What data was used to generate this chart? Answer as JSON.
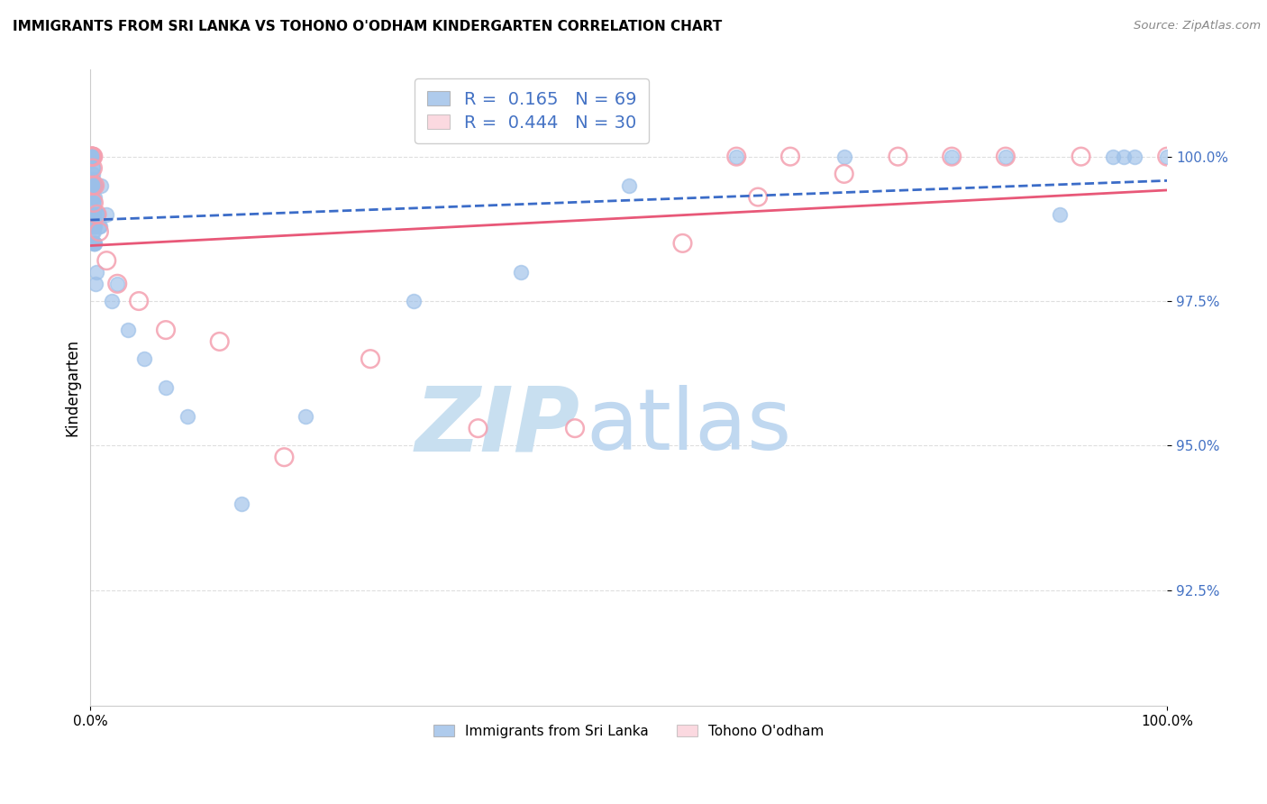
{
  "title": "IMMIGRANTS FROM SRI LANKA VS TOHONO O'ODHAM KINDERGARTEN CORRELATION CHART",
  "source": "Source: ZipAtlas.com",
  "ylabel": "Kindergarten",
  "xlim": [
    0.0,
    100.0
  ],
  "ylim": [
    90.5,
    101.5
  ],
  "y_tick_values": [
    92.5,
    95.0,
    97.5,
    100.0
  ],
  "legend_blue_label": "Immigrants from Sri Lanka",
  "legend_pink_label": "Tohono O'odham",
  "R_blue": "0.165",
  "N_blue": "69",
  "R_pink": "0.444",
  "N_pink": "30",
  "blue_face_color": "#9BBFE8",
  "blue_edge_color": "#9BBFE8",
  "pink_edge_color": "#F4A0B0",
  "pink_legend_color": "#F9C0CC",
  "blue_line_color": "#3B6CC8",
  "pink_line_color": "#E85878",
  "ytick_color": "#4472C4",
  "watermark_zip_color": "#C8DFF0",
  "watermark_atlas_color": "#C0D8F0",
  "blue_x": [
    0.08,
    0.09,
    0.1,
    0.1,
    0.1,
    0.11,
    0.12,
    0.13,
    0.14,
    0.15,
    0.15,
    0.16,
    0.17,
    0.17,
    0.18,
    0.18,
    0.19,
    0.2,
    0.2,
    0.2,
    0.21,
    0.22,
    0.22,
    0.23,
    0.24,
    0.25,
    0.25,
    0.26,
    0.27,
    0.28,
    0.29,
    0.3,
    0.3,
    0.32,
    0.33,
    0.35,
    0.36,
    0.38,
    0.4,
    0.42,
    0.45,
    0.5,
    0.55,
    0.6,
    0.7,
    0.8,
    0.9,
    1.0,
    1.5,
    2.0,
    2.5,
    3.5,
    5.0,
    7.0,
    9.0,
    14.0,
    20.0,
    30.0,
    40.0,
    50.0,
    60.0,
    70.0,
    80.0,
    85.0,
    90.0,
    95.0,
    96.0,
    97.0,
    100.0
  ],
  "blue_y": [
    100.0,
    100.0,
    100.0,
    100.0,
    100.0,
    100.0,
    100.0,
    100.0,
    100.0,
    100.0,
    100.0,
    100.0,
    100.0,
    100.0,
    99.7,
    99.5,
    99.8,
    100.0,
    99.6,
    99.3,
    99.8,
    99.5,
    99.2,
    99.0,
    98.8,
    99.5,
    99.0,
    98.7,
    98.5,
    99.0,
    98.8,
    99.2,
    98.5,
    99.0,
    98.7,
    99.3,
    98.5,
    98.8,
    99.5,
    98.5,
    97.8,
    99.5,
    98.0,
    99.0,
    99.0,
    98.8,
    98.8,
    99.5,
    99.0,
    97.5,
    97.8,
    97.0,
    96.5,
    96.0,
    95.5,
    94.0,
    95.5,
    97.5,
    98.0,
    99.5,
    100.0,
    100.0,
    100.0,
    100.0,
    99.0,
    100.0,
    100.0,
    100.0,
    100.0
  ],
  "pink_x": [
    0.1,
    0.15,
    0.17,
    0.18,
    0.2,
    0.22,
    0.25,
    0.3,
    0.4,
    0.6,
    0.8,
    1.5,
    2.5,
    4.5,
    7.0,
    12.0,
    18.0,
    26.0,
    36.0,
    45.0,
    55.0,
    60.0,
    62.0,
    65.0,
    70.0,
    75.0,
    80.0,
    85.0,
    92.0,
    100.0
  ],
  "pink_y": [
    100.0,
    100.0,
    100.0,
    100.0,
    99.5,
    99.8,
    100.0,
    99.2,
    99.5,
    99.0,
    98.7,
    98.2,
    97.8,
    97.5,
    97.0,
    96.8,
    94.8,
    96.5,
    95.3,
    95.3,
    98.5,
    100.0,
    99.3,
    100.0,
    99.7,
    100.0,
    100.0,
    100.0,
    100.0,
    100.0
  ]
}
